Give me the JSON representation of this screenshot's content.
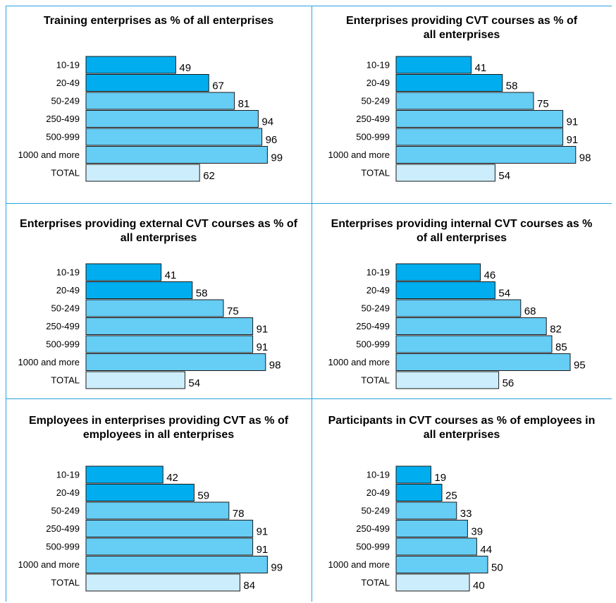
{
  "colors": {
    "dark_bar": "#00aeef",
    "mid_bar": "#66cdf5",
    "total_bar": "#ccedfb",
    "border": "#1a1a1a",
    "frame": "#29a3dd"
  },
  "chart_data": [
    {
      "type": "bar",
      "title": "Training enterprises as % of all enterprises",
      "categories": [
        "10-19",
        "20-49",
        "50-249",
        "250-499",
        "500-999",
        "1000 and more",
        "TOTAL"
      ],
      "values": [
        49,
        67,
        81,
        94,
        96,
        99,
        62
      ],
      "xlabel": "",
      "ylabel": ""
    },
    {
      "type": "bar",
      "title": "Enterprises providing CVT courses as % of all enterprises",
      "categories": [
        "10-19",
        "20-49",
        "50-249",
        "250-499",
        "500-999",
        "1000 and more",
        "TOTAL"
      ],
      "values": [
        41,
        58,
        75,
        91,
        91,
        98,
        54
      ],
      "xlabel": "",
      "ylabel": ""
    },
    {
      "type": "bar",
      "title": "Enterprises providing external CVT courses as % of all enterprises",
      "categories": [
        "10-19",
        "20-49",
        "50-249",
        "250-499",
        "500-999",
        "1000 and more",
        "TOTAL"
      ],
      "values": [
        41,
        58,
        75,
        91,
        91,
        98,
        54
      ],
      "xlabel": "",
      "ylabel": ""
    },
    {
      "type": "bar",
      "title": "Enterprises providing internal CVT courses as % of all enterprises",
      "categories": [
        "10-19",
        "20-49",
        "50-249",
        "250-499",
        "500-999",
        "1000 and more",
        "TOTAL"
      ],
      "values": [
        46,
        54,
        68,
        82,
        85,
        95,
        56
      ],
      "xlabel": "",
      "ylabel": ""
    },
    {
      "type": "bar",
      "title": "Employees in enterprises providing CVT as % of employees in all enterprises",
      "categories": [
        "10-19",
        "20-49",
        "50-249",
        "250-499",
        "500-999",
        "1000 and more",
        "TOTAL"
      ],
      "values": [
        42,
        59,
        78,
        91,
        91,
        99,
        84
      ],
      "xlabel": "",
      "ylabel": ""
    },
    {
      "type": "bar",
      "title": "Participants in CVT courses as % of employees in all enterprises",
      "categories": [
        "10-19",
        "20-49",
        "50-249",
        "250-499",
        "500-999",
        "1000 and more",
        "TOTAL"
      ],
      "values": [
        19,
        25,
        33,
        39,
        44,
        50,
        40
      ],
      "xlabel": "",
      "ylabel": ""
    }
  ]
}
